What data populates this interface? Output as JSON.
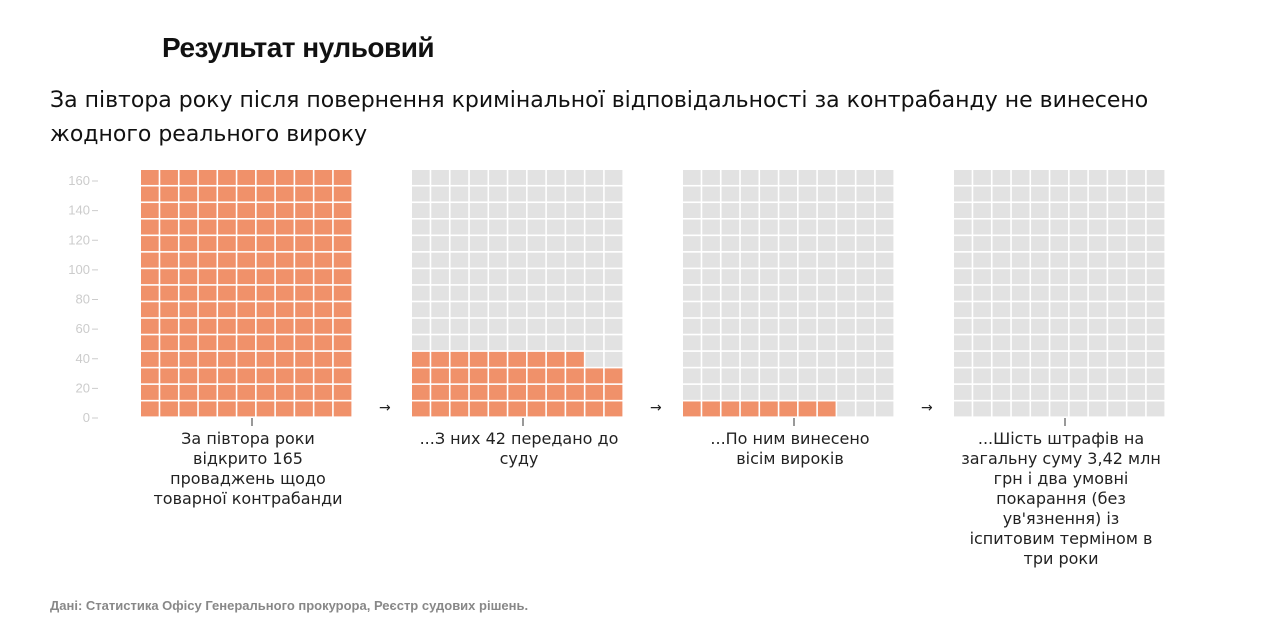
{
  "title": "Результат нульовий",
  "subtitle": "За півтора року після повернення кримінальної відповідальності за контрабанду не винесено жодного реального вироку",
  "source": "Дані: Статистика Офісу Генерального прокурора, Реєстр судових рішень.",
  "colors": {
    "highlight": "#f0916a",
    "background_cell": "#e2e2e2",
    "axis": "#cccccc"
  },
  "arrow_glyph": "→",
  "chart_data": {
    "type": "waffle",
    "unit": 1,
    "columns_per_panel": 11,
    "ylim": [
      0,
      165
    ],
    "yticks": [
      0,
      20,
      40,
      60,
      80,
      100,
      120,
      140,
      160
    ],
    "total": 165,
    "grid_on": false,
    "panels": [
      {
        "value": 165,
        "caption": "За півтора роки відкрито 165 проваджень щодо товарної контрабанди"
      },
      {
        "value": 42,
        "caption": "...З них 42 передано до суду"
      },
      {
        "value": 8,
        "caption": "...По ним винесено вісім вироків"
      },
      {
        "value": 0,
        "caption": "...Шість штрафів на загальну суму 3,42 млн грн і два умовні покарання (без ув'язнення) із іспитовим терміном в три роки"
      }
    ]
  }
}
